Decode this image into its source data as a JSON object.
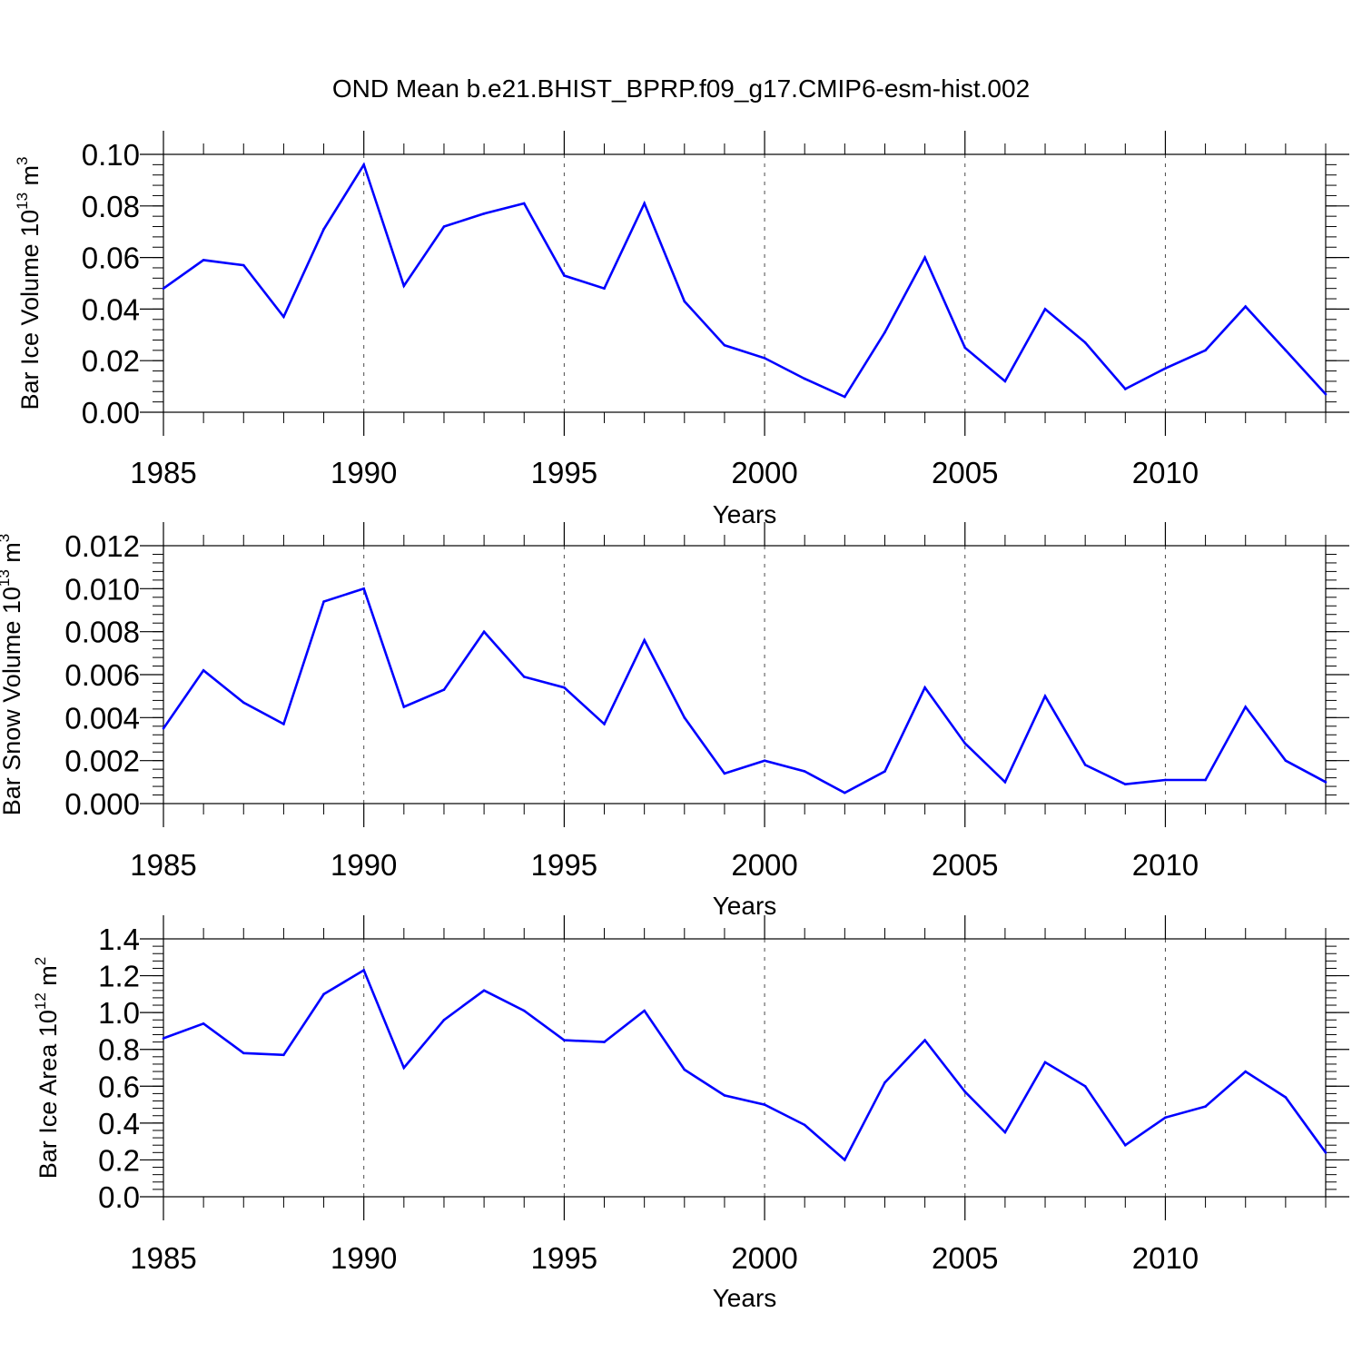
{
  "figure_title": "OND Mean b.e21.BHIST_BPRP.f09_g17.CMIP6-esm-hist.002",
  "colors": {
    "series": "#0000ff",
    "axis": "#000000",
    "grid": "#000000"
  },
  "chart_data": [
    {
      "type": "line",
      "xlabel": "Years",
      "ylabel": {
        "main": "Bar Ice Volume 10",
        "sup": "13",
        "unit": " m",
        "unit_sup": "3"
      },
      "xlim": [
        1985,
        2014
      ],
      "ylim": [
        0,
        0.1
      ],
      "x_ticks": [
        1985,
        1990,
        1995,
        2000,
        2005,
        2010
      ],
      "x_tick_labels": [
        "1985",
        "1990",
        "1995",
        "2000",
        "2005",
        "2010"
      ],
      "y_ticks": [
        0,
        0.02,
        0.04,
        0.06,
        0.08,
        0.1
      ],
      "y_tick_labels": [
        "0.00",
        "0.02",
        "0.04",
        "0.06",
        "0.08",
        "0.10"
      ],
      "y_minor_step": 0.004,
      "grid": "vertical dashed at major x ticks",
      "x": [
        1985,
        1986,
        1987,
        1988,
        1989,
        1990,
        1991,
        1992,
        1993,
        1994,
        1995,
        1996,
        1997,
        1998,
        1999,
        2000,
        2001,
        2002,
        2003,
        2004,
        2005,
        2006,
        2007,
        2008,
        2009,
        2010,
        2011,
        2012,
        2013,
        2014
      ],
      "y": [
        0.048,
        0.059,
        0.057,
        0.037,
        0.071,
        0.096,
        0.049,
        0.072,
        0.077,
        0.081,
        0.053,
        0.048,
        0.081,
        0.043,
        0.026,
        0.021,
        0.013,
        0.006,
        0.031,
        0.06,
        0.025,
        0.012,
        0.04,
        0.027,
        0.009,
        0.017,
        0.024,
        0.041,
        0.024,
        0.007
      ]
    },
    {
      "type": "line",
      "xlabel": "Years",
      "ylabel": {
        "main": "Bar Snow Volume 10",
        "sup": "13",
        "unit": " m",
        "unit_sup": "3"
      },
      "xlim": [
        1985,
        2014
      ],
      "ylim": [
        0,
        0.012
      ],
      "x_ticks": [
        1985,
        1990,
        1995,
        2000,
        2005,
        2010
      ],
      "x_tick_labels": [
        "1985",
        "1990",
        "1995",
        "2000",
        "2005",
        "2010"
      ],
      "y_ticks": [
        0,
        0.002,
        0.004,
        0.006,
        0.008,
        0.01,
        0.012
      ],
      "y_tick_labels": [
        "0.000",
        "0.002",
        "0.004",
        "0.006",
        "0.008",
        "0.010",
        "0.012"
      ],
      "y_minor_step": 0.0004,
      "grid": "vertical dashed at major x ticks",
      "x": [
        1985,
        1986,
        1987,
        1988,
        1989,
        1990,
        1991,
        1992,
        1993,
        1994,
        1995,
        1996,
        1997,
        1998,
        1999,
        2000,
        2001,
        2002,
        2003,
        2004,
        2005,
        2006,
        2007,
        2008,
        2009,
        2010,
        2011,
        2012,
        2013,
        2014
      ],
      "y": [
        0.0035,
        0.0062,
        0.0047,
        0.0037,
        0.0094,
        0.01,
        0.0045,
        0.0053,
        0.008,
        0.0059,
        0.0054,
        0.0037,
        0.0076,
        0.004,
        0.0014,
        0.002,
        0.0015,
        0.0005,
        0.0015,
        0.0054,
        0.0028,
        0.001,
        0.005,
        0.0018,
        0.0009,
        0.0011,
        0.0011,
        0.0045,
        0.002,
        0.001
      ]
    },
    {
      "type": "line",
      "xlabel": "Years",
      "ylabel": {
        "main": "Bar Ice Area 10",
        "sup": "12",
        "unit": " m",
        "unit_sup": "2"
      },
      "xlim": [
        1985,
        2014
      ],
      "ylim": [
        0,
        1.4
      ],
      "x_ticks": [
        1985,
        1990,
        1995,
        2000,
        2005,
        2010
      ],
      "x_tick_labels": [
        "1985",
        "1990",
        "1995",
        "2000",
        "2005",
        "2010"
      ],
      "y_ticks": [
        0,
        0.2,
        0.4,
        0.6,
        0.8,
        1.0,
        1.2,
        1.4
      ],
      "y_tick_labels": [
        "0.0",
        "0.2",
        "0.4",
        "0.6",
        "0.8",
        "1.0",
        "1.2",
        "1.4"
      ],
      "y_minor_step": 0.04,
      "grid": "vertical dashed at major x ticks",
      "x": [
        1985,
        1986,
        1987,
        1988,
        1989,
        1990,
        1991,
        1992,
        1993,
        1994,
        1995,
        1996,
        1997,
        1998,
        1999,
        2000,
        2001,
        2002,
        2003,
        2004,
        2005,
        2006,
        2007,
        2008,
        2009,
        2010,
        2011,
        2012,
        2013,
        2014
      ],
      "y": [
        0.86,
        0.94,
        0.78,
        0.77,
        1.1,
        1.23,
        0.7,
        0.96,
        1.12,
        1.01,
        0.85,
        0.84,
        1.01,
        0.69,
        0.55,
        0.5,
        0.39,
        0.2,
        0.62,
        0.85,
        0.57,
        0.35,
        0.73,
        0.6,
        0.28,
        0.43,
        0.49,
        0.68,
        0.54,
        0.24
      ]
    }
  ]
}
